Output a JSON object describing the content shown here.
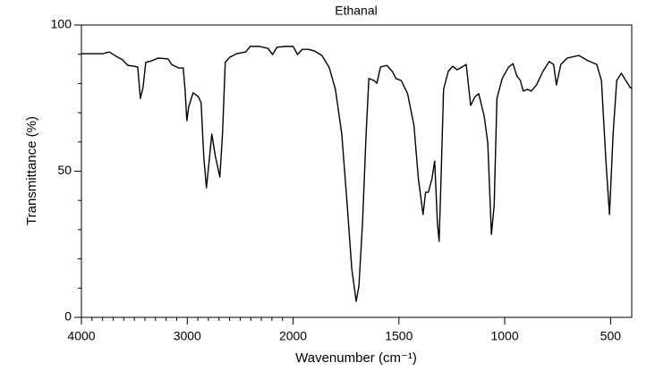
{
  "chart_data": {
    "type": "line",
    "title": "Ethanal",
    "x_label": "Wavenumber (cm⁻¹)",
    "y_label": "Transmittance (%)",
    "xlim": [
      4000,
      400
    ],
    "x_scale_break": 2000,
    "xticks": [
      4000,
      3000,
      2000,
      1500,
      1000,
      500
    ],
    "xminorticks": [
      3900,
      3800,
      3700,
      3600,
      3500,
      3400,
      3300,
      3200,
      3100,
      2900,
      2800,
      2700,
      2600,
      2500,
      2400,
      2300,
      2200,
      2100
    ],
    "ylim": [
      0,
      100
    ],
    "yticks": [
      0,
      50,
      100
    ],
    "yminorticks": [
      10,
      20,
      30,
      40,
      60,
      70,
      80,
      90
    ],
    "series": [
      {
        "color": "#000000",
        "x": [
          4000,
          3797,
          3738,
          3671,
          3612,
          3561,
          3502,
          3468,
          3443,
          3418,
          3392,
          3333,
          3274,
          3181,
          3148,
          3080,
          3038,
          3021,
          3004,
          2987,
          2945,
          2895,
          2869,
          2844,
          2819,
          2793,
          2768,
          2734,
          2692,
          2667,
          2641,
          2599,
          2532,
          2447,
          2405,
          2321,
          2236,
          2194,
          2152,
          2068,
          2000,
          1979,
          1957,
          1928,
          1898,
          1864,
          1830,
          1800,
          1770,
          1744,
          1723,
          1702,
          1689,
          1672,
          1655,
          1642,
          1617,
          1604,
          1587,
          1557,
          1531,
          1514,
          1489,
          1459,
          1429,
          1408,
          1386,
          1374,
          1361,
          1344,
          1331,
          1318,
          1310,
          1301,
          1289,
          1267,
          1246,
          1225,
          1203,
          1182,
          1161,
          1140,
          1123,
          1097,
          1080,
          1063,
          1050,
          1037,
          1012,
          982,
          961,
          943,
          926,
          913,
          892,
          875,
          850,
          820,
          790,
          769,
          756,
          735,
          705,
          650,
          607,
          565,
          543,
          522,
          505,
          488,
          471,
          449,
          428,
          407,
          400
        ],
        "values": [
          90.2,
          90.2,
          90.8,
          89.3,
          88.1,
          86.2,
          85.9,
          85.6,
          74.9,
          78.6,
          87.2,
          87.8,
          88.7,
          88.4,
          86.5,
          85.3,
          85.3,
          78.0,
          67.3,
          71.9,
          76.8,
          75.5,
          73.4,
          55.0,
          44.3,
          53.5,
          62.7,
          55.0,
          48.0,
          62.7,
          87.2,
          89.0,
          90.2,
          90.8,
          92.7,
          92.7,
          92.0,
          89.9,
          92.4,
          92.7,
          92.7,
          89.9,
          91.7,
          91.7,
          91.1,
          89.6,
          85.6,
          78.0,
          62.7,
          38.2,
          16.8,
          5.5,
          10.7,
          32.1,
          62.7,
          81.7,
          81.0,
          80.1,
          85.6,
          86.2,
          84.1,
          81.7,
          81.0,
          76.5,
          65.7,
          47.4,
          35.2,
          42.8,
          42.8,
          47.4,
          53.5,
          32.1,
          26.0,
          47.4,
          78.0,
          84.1,
          85.9,
          84.7,
          85.6,
          86.5,
          72.5,
          75.5,
          76.5,
          68.8,
          59.6,
          28.4,
          38.2,
          74.9,
          81.7,
          85.6,
          86.8,
          82.6,
          81.0,
          77.4,
          78.0,
          77.4,
          79.5,
          84.1,
          87.5,
          86.5,
          79.5,
          86.5,
          88.7,
          89.6,
          87.8,
          86.5,
          81.0,
          53.5,
          35.2,
          62.7,
          81.0,
          83.5,
          81.0,
          78.6,
          78.3
        ]
      }
    ]
  }
}
